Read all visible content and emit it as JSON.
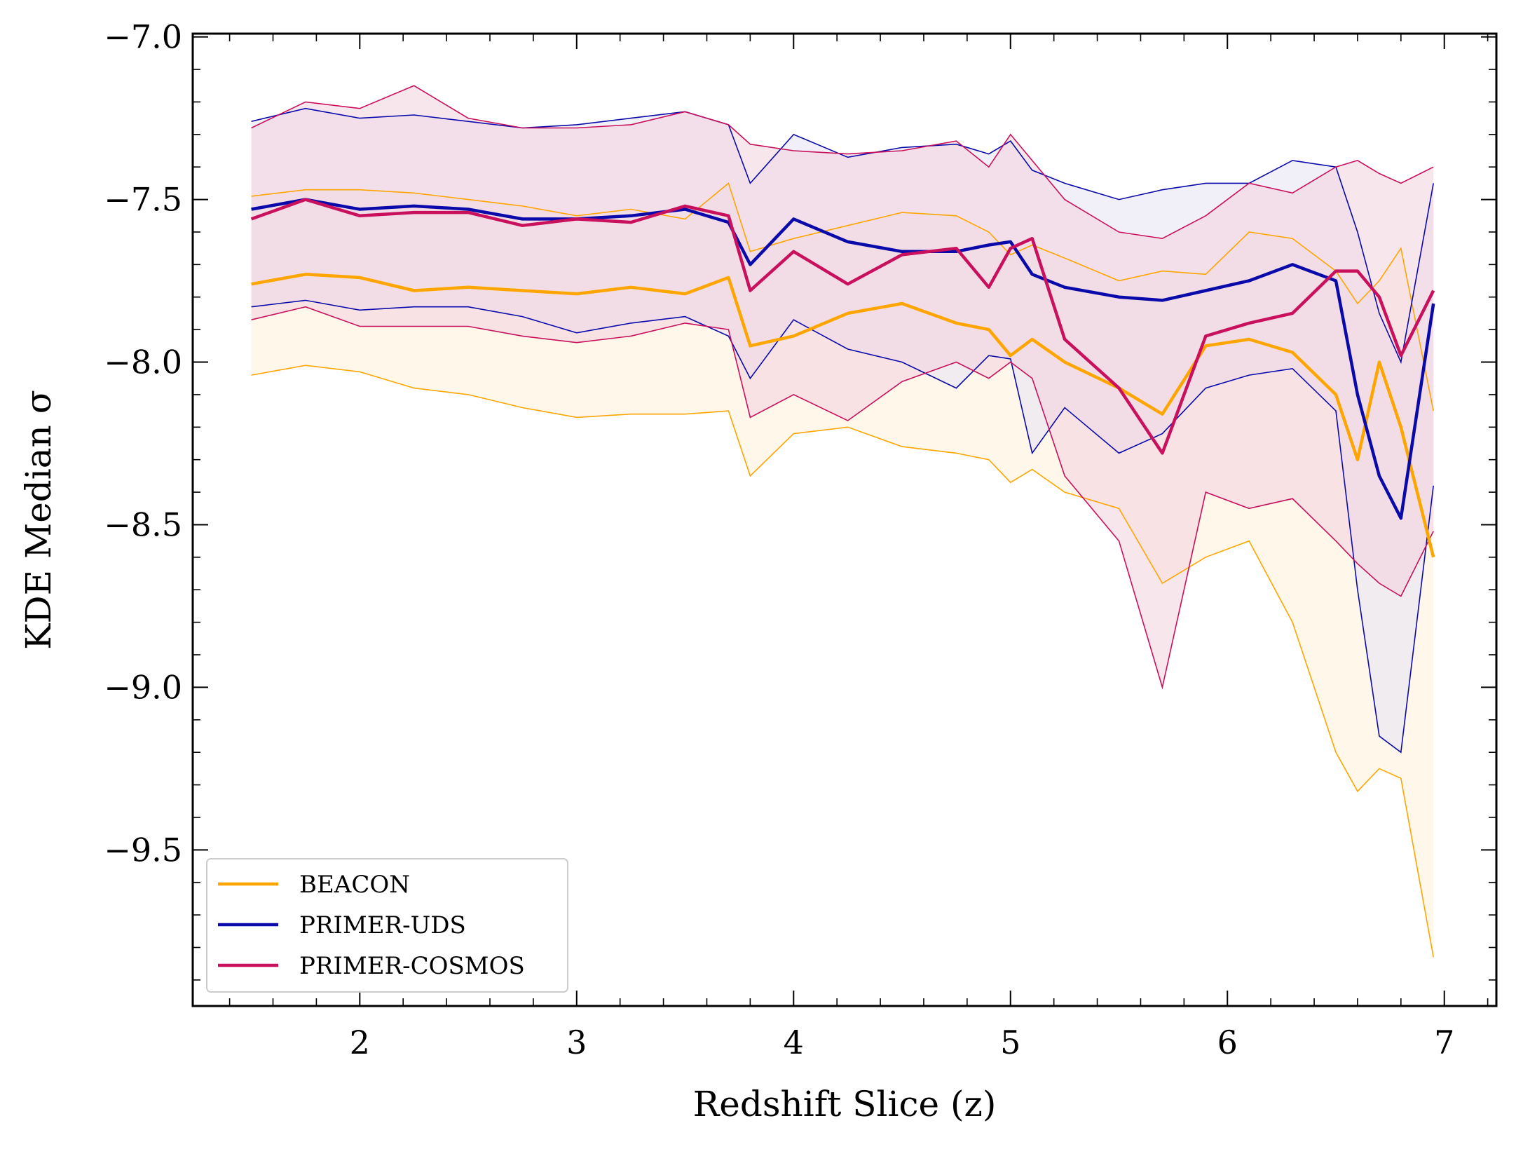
{
  "chart_data": {
    "type": "line",
    "xlabel": "Redshift Slice (z)",
    "ylabel": "KDE Median σ",
    "xlim": [
      1.23,
      7.24
    ],
    "ylim": [
      -9.98,
      -6.99
    ],
    "xticks": [
      2,
      3,
      4,
      5,
      6,
      7
    ],
    "xtick_labels": [
      "2",
      "3",
      "4",
      "5",
      "6",
      "7"
    ],
    "yticks": [
      -7.0,
      -7.5,
      -8.0,
      -8.5,
      -9.0,
      -9.5
    ],
    "ytick_labels": [
      "−7.0",
      "−7.5",
      "−8.0",
      "−8.5",
      "−9.0",
      "−9.5"
    ],
    "legend_position": "bottom-left",
    "x": [
      1.5,
      1.75,
      2.0,
      2.25,
      2.5,
      2.75,
      3.0,
      3.25,
      3.5,
      3.7,
      3.8,
      4.0,
      4.25,
      4.5,
      4.75,
      4.9,
      5.0,
      5.1,
      5.25,
      5.5,
      5.7,
      5.9,
      6.1,
      6.3,
      6.5,
      6.6,
      6.7,
      6.8,
      6.95
    ],
    "series": [
      {
        "name": "BEACON",
        "color": "#FFA500",
        "fill": "#FDF0D8",
        "median": [
          -7.76,
          -7.73,
          -7.74,
          -7.78,
          -7.77,
          -7.78,
          -7.79,
          -7.77,
          -7.79,
          -7.74,
          -7.95,
          -7.92,
          -7.85,
          -7.82,
          -7.88,
          -7.9,
          -7.98,
          -7.93,
          -8.0,
          -8.08,
          -8.16,
          -7.95,
          -7.93,
          -7.97,
          -8.1,
          -8.3,
          -8.0,
          -8.2,
          -8.6
        ],
        "upper": [
          -7.49,
          -7.47,
          -7.47,
          -7.48,
          -7.5,
          -7.52,
          -7.55,
          -7.53,
          -7.56,
          -7.45,
          -7.66,
          -7.62,
          -7.58,
          -7.54,
          -7.55,
          -7.6,
          -7.67,
          -7.64,
          -7.68,
          -7.75,
          -7.72,
          -7.73,
          -7.6,
          -7.62,
          -7.72,
          -7.82,
          -7.75,
          -7.65,
          -8.15
        ],
        "lower": [
          -8.04,
          -8.01,
          -8.03,
          -8.08,
          -8.1,
          -8.14,
          -8.17,
          -8.16,
          -8.16,
          -8.15,
          -8.35,
          -8.22,
          -8.2,
          -8.26,
          -8.28,
          -8.3,
          -8.37,
          -8.33,
          -8.4,
          -8.45,
          -8.68,
          -8.6,
          -8.55,
          -8.8,
          -9.2,
          -9.32,
          -9.25,
          -9.28,
          -9.83
        ]
      },
      {
        "name": "PRIMER-UDS",
        "color": "#0A0AAA",
        "fill": "#E6E4F4",
        "median": [
          -7.53,
          -7.5,
          -7.53,
          -7.52,
          -7.53,
          -7.56,
          -7.56,
          -7.55,
          -7.53,
          -7.57,
          -7.7,
          -7.56,
          -7.63,
          -7.66,
          -7.66,
          -7.64,
          -7.63,
          -7.73,
          -7.77,
          -7.8,
          -7.81,
          -7.78,
          -7.75,
          -7.7,
          -7.75,
          -8.1,
          -8.35,
          -8.48,
          -7.82
        ],
        "upper": [
          -7.26,
          -7.22,
          -7.25,
          -7.24,
          -7.26,
          -7.28,
          -7.27,
          -7.25,
          -7.23,
          -7.27,
          -7.45,
          -7.3,
          -7.37,
          -7.34,
          -7.33,
          -7.36,
          -7.32,
          -7.41,
          -7.45,
          -7.5,
          -7.47,
          -7.45,
          -7.45,
          -7.38,
          -7.4,
          -7.6,
          -7.85,
          -8.0,
          -7.45
        ],
        "lower": [
          -7.83,
          -7.81,
          -7.84,
          -7.83,
          -7.83,
          -7.86,
          -7.91,
          -7.88,
          -7.86,
          -7.92,
          -8.05,
          -7.87,
          -7.96,
          -8.0,
          -8.08,
          -7.98,
          -7.99,
          -8.28,
          -8.14,
          -8.28,
          -8.22,
          -8.08,
          -8.04,
          -8.02,
          -8.15,
          -8.7,
          -9.15,
          -9.2,
          -8.38
        ]
      },
      {
        "name": "PRIMER-COSMOS",
        "color": "#C8105C",
        "fill": "#F3D1DF",
        "median": [
          -7.56,
          -7.5,
          -7.55,
          -7.54,
          -7.54,
          -7.58,
          -7.56,
          -7.57,
          -7.52,
          -7.55,
          -7.78,
          -7.66,
          -7.76,
          -7.67,
          -7.65,
          -7.77,
          -7.65,
          -7.62,
          -7.93,
          -8.08,
          -8.28,
          -7.92,
          -7.88,
          -7.85,
          -7.72,
          -7.72,
          -7.8,
          -7.98,
          -7.78
        ],
        "upper": [
          -7.28,
          -7.2,
          -7.22,
          -7.15,
          -7.25,
          -7.28,
          -7.28,
          -7.27,
          -7.23,
          -7.27,
          -7.33,
          -7.35,
          -7.36,
          -7.35,
          -7.32,
          -7.4,
          -7.3,
          -7.38,
          -7.5,
          -7.6,
          -7.62,
          -7.55,
          -7.45,
          -7.48,
          -7.4,
          -7.38,
          -7.42,
          -7.45,
          -7.4
        ],
        "lower": [
          -7.87,
          -7.83,
          -7.89,
          -7.89,
          -7.89,
          -7.92,
          -7.94,
          -7.92,
          -7.88,
          -7.9,
          -8.17,
          -8.1,
          -8.18,
          -8.06,
          -8.0,
          -8.05,
          -8.0,
          -8.05,
          -8.35,
          -8.55,
          -9.0,
          -8.4,
          -8.45,
          -8.42,
          -8.55,
          -8.62,
          -8.68,
          -8.72,
          -8.52
        ]
      }
    ]
  }
}
